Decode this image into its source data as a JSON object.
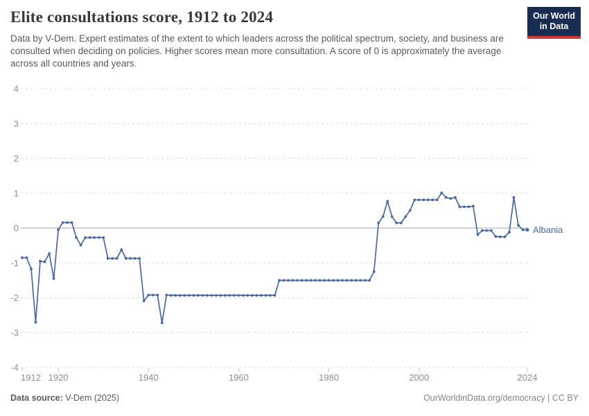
{
  "header": {
    "title": "Elite consultations score, 1912 to 2024",
    "subtitle": "Data by V-Dem. Expert estimates of the extent to which leaders across the political spectrum, society, and business are consulted when deciding on policies. Higher scores mean more consultation. A score of 0 is approximately the average across all countries and years.",
    "logo": {
      "line1": "Our World",
      "line2": "in Data",
      "bg_color": "#182d51",
      "accent_color": "#cf3a31"
    }
  },
  "chart_data": {
    "type": "line",
    "title": "Elite consultations score, 1912 to 2024",
    "xlabel": "",
    "ylabel": "",
    "xlim": [
      1912,
      2024
    ],
    "ylim": [
      -4,
      4
    ],
    "x_ticks": [
      1912,
      1920,
      1940,
      1960,
      1980,
      2000,
      2024
    ],
    "y_ticks": [
      4,
      3,
      2,
      1,
      0,
      -1,
      -2,
      -3,
      -4
    ],
    "grid": "horizontal-dashed",
    "zero_line": true,
    "legend_position": "end-of-line-label",
    "series": [
      {
        "name": "Albania",
        "color": "#4a689d",
        "points": [
          [
            1912,
            -0.85
          ],
          [
            1913,
            -0.85
          ],
          [
            1914,
            -1.17
          ],
          [
            1915,
            -2.7
          ],
          [
            1916,
            -0.95
          ],
          [
            1917,
            -0.97
          ],
          [
            1918,
            -0.73
          ],
          [
            1919,
            -1.45
          ],
          [
            1920,
            -0.05
          ],
          [
            1921,
            0.16
          ],
          [
            1922,
            0.16
          ],
          [
            1923,
            0.16
          ],
          [
            1924,
            -0.27
          ],
          [
            1925,
            -0.49
          ],
          [
            1926,
            -0.27
          ],
          [
            1927,
            -0.27
          ],
          [
            1928,
            -0.27
          ],
          [
            1929,
            -0.27
          ],
          [
            1930,
            -0.27
          ],
          [
            1931,
            -0.87
          ],
          [
            1932,
            -0.87
          ],
          [
            1933,
            -0.87
          ],
          [
            1934,
            -0.62
          ],
          [
            1935,
            -0.87
          ],
          [
            1936,
            -0.87
          ],
          [
            1937,
            -0.87
          ],
          [
            1938,
            -0.87
          ],
          [
            1939,
            -2.09
          ],
          [
            1940,
            -1.92
          ],
          [
            1941,
            -1.92
          ],
          [
            1942,
            -1.92
          ],
          [
            1943,
            -2.72
          ],
          [
            1944,
            -1.92
          ],
          [
            1945,
            -1.93
          ],
          [
            1946,
            -1.93
          ],
          [
            1947,
            -1.93
          ],
          [
            1948,
            -1.93
          ],
          [
            1949,
            -1.93
          ],
          [
            1950,
            -1.93
          ],
          [
            1951,
            -1.93
          ],
          [
            1952,
            -1.93
          ],
          [
            1953,
            -1.93
          ],
          [
            1954,
            -1.93
          ],
          [
            1955,
            -1.93
          ],
          [
            1956,
            -1.93
          ],
          [
            1957,
            -1.93
          ],
          [
            1958,
            -1.93
          ],
          [
            1959,
            -1.93
          ],
          [
            1960,
            -1.93
          ],
          [
            1961,
            -1.93
          ],
          [
            1962,
            -1.93
          ],
          [
            1963,
            -1.93
          ],
          [
            1964,
            -1.93
          ],
          [
            1965,
            -1.93
          ],
          [
            1966,
            -1.93
          ],
          [
            1967,
            -1.93
          ],
          [
            1968,
            -1.93
          ],
          [
            1969,
            -1.5
          ],
          [
            1970,
            -1.5
          ],
          [
            1971,
            -1.5
          ],
          [
            1972,
            -1.5
          ],
          [
            1973,
            -1.5
          ],
          [
            1974,
            -1.5
          ],
          [
            1975,
            -1.5
          ],
          [
            1976,
            -1.5
          ],
          [
            1977,
            -1.5
          ],
          [
            1978,
            -1.5
          ],
          [
            1979,
            -1.5
          ],
          [
            1980,
            -1.5
          ],
          [
            1981,
            -1.5
          ],
          [
            1982,
            -1.5
          ],
          [
            1983,
            -1.5
          ],
          [
            1984,
            -1.5
          ],
          [
            1985,
            -1.5
          ],
          [
            1986,
            -1.5
          ],
          [
            1987,
            -1.5
          ],
          [
            1988,
            -1.5
          ],
          [
            1989,
            -1.5
          ],
          [
            1990,
            -1.25
          ],
          [
            1991,
            0.15
          ],
          [
            1992,
            0.33
          ],
          [
            1993,
            0.77
          ],
          [
            1994,
            0.33
          ],
          [
            1995,
            0.15
          ],
          [
            1996,
            0.15
          ],
          [
            1997,
            0.33
          ],
          [
            1998,
            0.51
          ],
          [
            1999,
            0.81
          ],
          [
            2000,
            0.81
          ],
          [
            2001,
            0.81
          ],
          [
            2002,
            0.81
          ],
          [
            2003,
            0.81
          ],
          [
            2004,
            0.81
          ],
          [
            2005,
            1.01
          ],
          [
            2006,
            0.88
          ],
          [
            2007,
            0.85
          ],
          [
            2008,
            0.88
          ],
          [
            2009,
            0.61
          ],
          [
            2010,
            0.61
          ],
          [
            2011,
            0.61
          ],
          [
            2012,
            0.63
          ],
          [
            2013,
            -0.19
          ],
          [
            2014,
            -0.07
          ],
          [
            2015,
            -0.07
          ],
          [
            2016,
            -0.07
          ],
          [
            2017,
            -0.24
          ],
          [
            2018,
            -0.25
          ],
          [
            2019,
            -0.25
          ],
          [
            2020,
            -0.12
          ],
          [
            2021,
            0.88
          ],
          [
            2022,
            0.08
          ],
          [
            2023,
            -0.05
          ],
          [
            2024,
            -0.05
          ]
        ]
      }
    ],
    "end_label": "Albania"
  },
  "colors": {
    "grid": "#dcdcdc",
    "zero_line": "#a3a3a3",
    "axis_text": "#8e8e8e",
    "tick_mark": "#bdbdbd",
    "series_blue": "#4a689d"
  },
  "footer": {
    "source_label": "Data source:",
    "source_value": " V-Dem (2025)",
    "license": "OurWorldinData.org/democracy | CC BY"
  }
}
